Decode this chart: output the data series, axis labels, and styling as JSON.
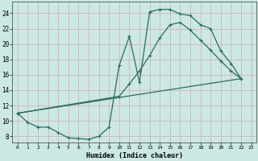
{
  "background_color": "#cce8e4",
  "grid_color": "#b8d8d4",
  "line_color": "#2a6b60",
  "xlabel": "Humidex (Indice chaleur)",
  "xlim": [
    -0.5,
    23.5
  ],
  "ylim": [
    7.2,
    25.5
  ],
  "xticks": [
    0,
    1,
    2,
    3,
    4,
    5,
    6,
    7,
    8,
    9,
    10,
    11,
    12,
    13,
    14,
    15,
    16,
    17,
    18,
    19,
    20,
    21,
    22,
    23
  ],
  "yticks": [
    8,
    10,
    12,
    14,
    16,
    18,
    20,
    22,
    24
  ],
  "line1_x": [
    0,
    1,
    2,
    3,
    4,
    5,
    6,
    7,
    8,
    9,
    10,
    11,
    12,
    13,
    14,
    15,
    16,
    17,
    18,
    19,
    20,
    21,
    22
  ],
  "line1_y": [
    11.0,
    9.8,
    9.2,
    9.2,
    8.5,
    7.8,
    7.7,
    7.6,
    8.0,
    9.2,
    17.2,
    21.0,
    15.0,
    24.2,
    24.5,
    24.5,
    23.9,
    23.7,
    22.5,
    22.0,
    19.1,
    17.5,
    15.5
  ],
  "line2_x": [
    0,
    22
  ],
  "line2_y": [
    11.0,
    15.5
  ],
  "line3_x": [
    0,
    10,
    11,
    12,
    13,
    14,
    15,
    16,
    17,
    18,
    19,
    20,
    21,
    22
  ],
  "line3_y": [
    11.0,
    13.2,
    14.8,
    16.5,
    18.5,
    20.8,
    22.5,
    22.8,
    21.8,
    20.5,
    19.2,
    17.8,
    16.5,
    15.5
  ]
}
